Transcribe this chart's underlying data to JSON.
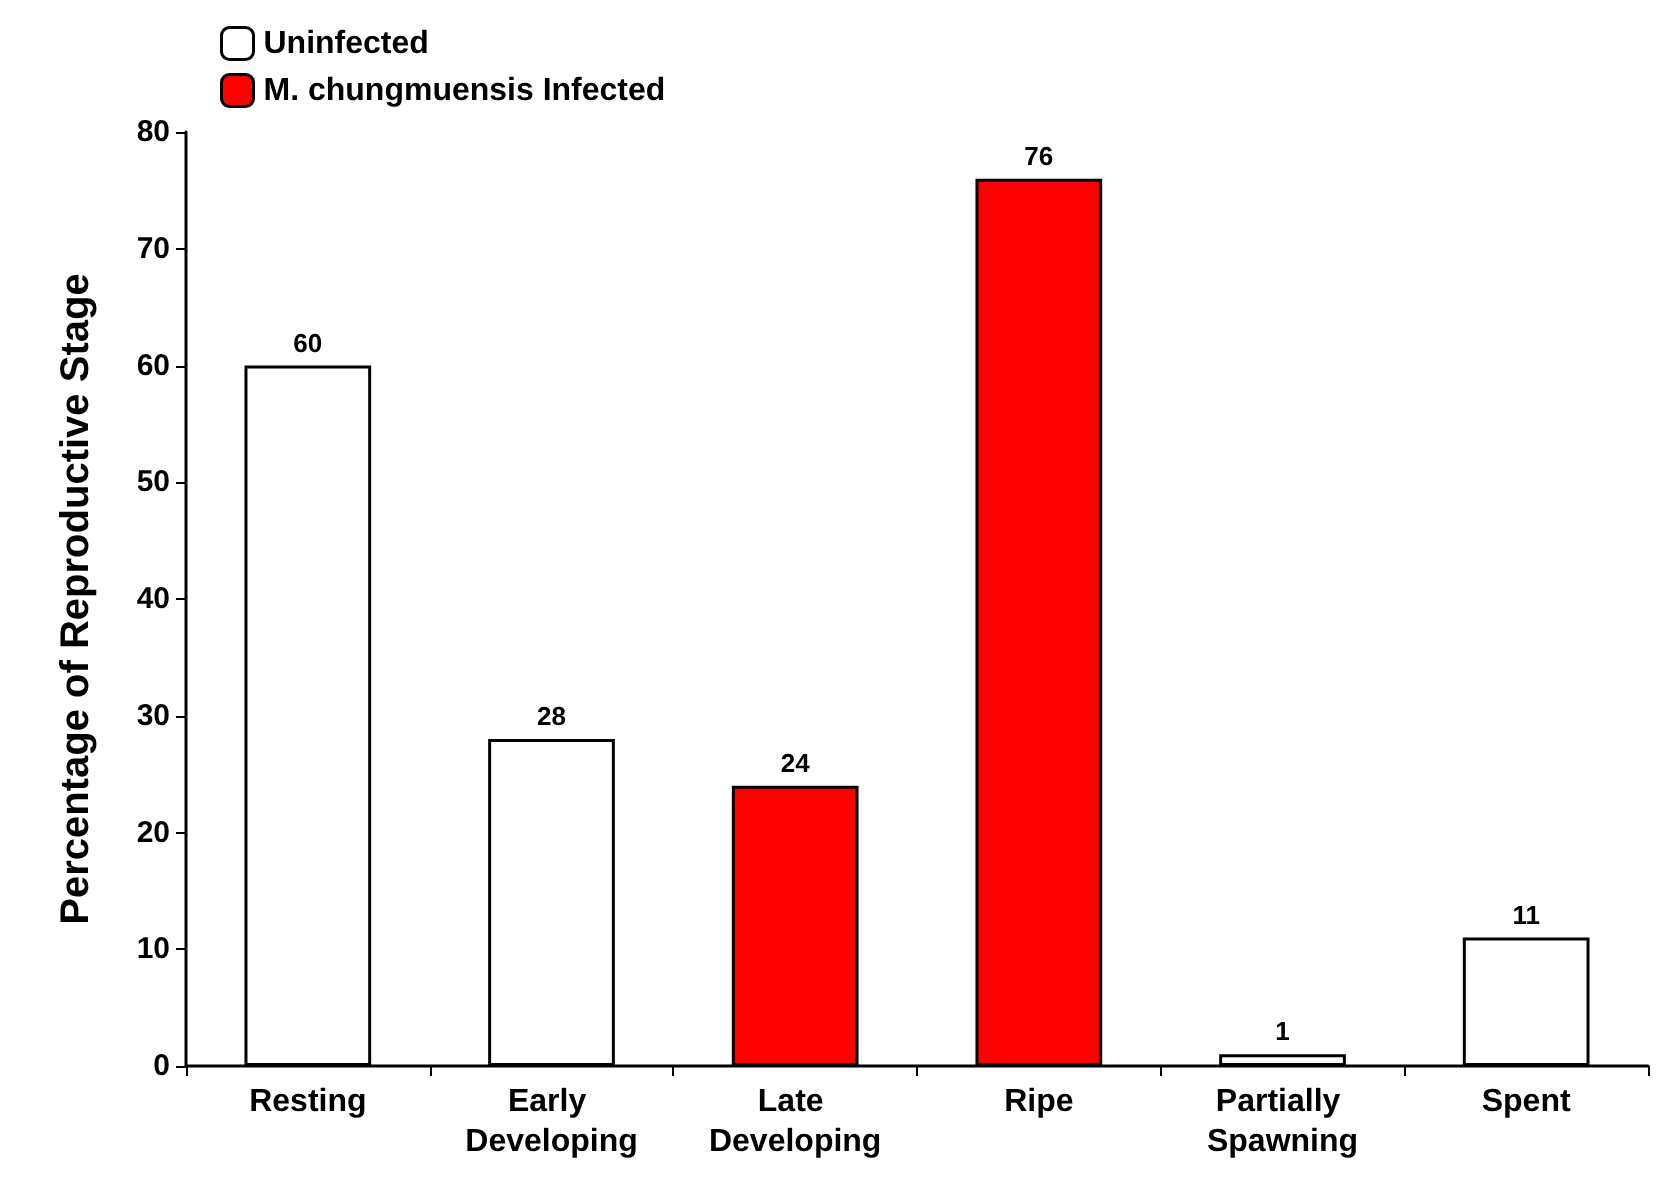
{
  "chart_data": {
    "type": "bar",
    "ylabel": "Percentage of Reproductive Stage",
    "categories": [
      "Resting",
      "Early Developing",
      "Late Developing",
      "Ripe",
      "Partially Spawning",
      "Spent"
    ],
    "series": [
      {
        "name": "Uninfected",
        "color": "#ffffff",
        "values": [
          60,
          28,
          null,
          null,
          1,
          11
        ]
      },
      {
        "name": "M. chungmuensis Infected",
        "color": "#ff0000",
        "values": [
          null,
          null,
          24,
          76,
          null,
          null
        ]
      }
    ],
    "ylim": [
      0,
      80
    ],
    "yticks": [
      0,
      10,
      20,
      30,
      40,
      50,
      60,
      70,
      80
    ],
    "data_labels": true,
    "legend": "top left",
    "grid": false
  }
}
